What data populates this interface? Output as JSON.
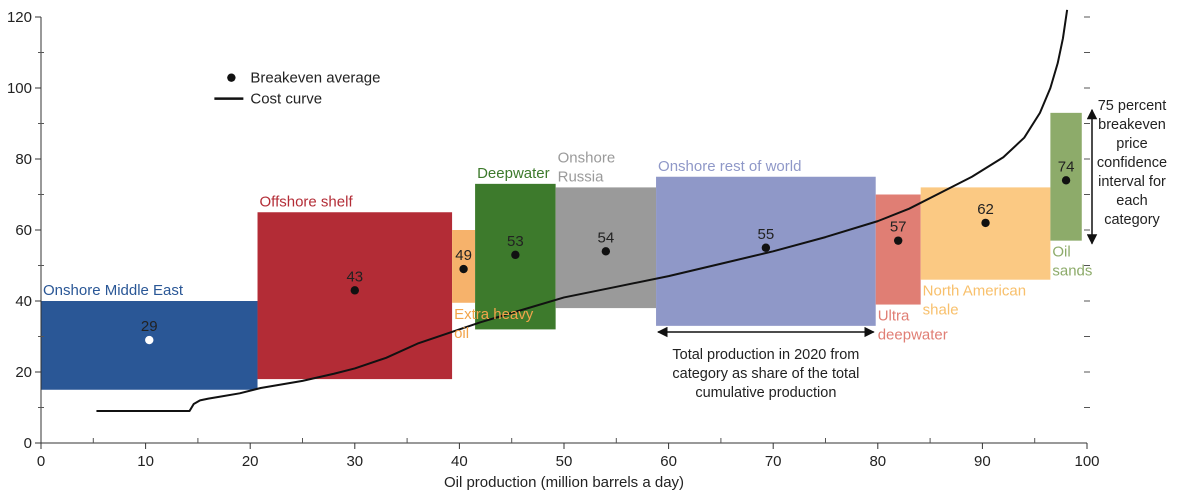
{
  "chart_data": {
    "type": "bar",
    "xlabel": "Oil production (million barrels a day)",
    "ylabel": "",
    "xlim": [
      0,
      100
    ],
    "ylim": [
      0,
      120
    ],
    "x_ticks": [
      0,
      10,
      20,
      30,
      40,
      50,
      60,
      70,
      80,
      90,
      100
    ],
    "y_ticks": [
      0,
      20,
      40,
      60,
      80,
      100,
      120
    ],
    "grid": false,
    "legend": {
      "placement": "top-left",
      "items": [
        {
          "name": "Breakeven average",
          "marker": "dot"
        },
        {
          "name": "Cost curve",
          "marker": "line"
        }
      ]
    },
    "categories": [
      {
        "label": [
          "Onshore Middle East"
        ],
        "x0": 0,
        "x1": 20.7,
        "low": 15,
        "high": 40,
        "avg": 29,
        "color": "#2a5796",
        "label_color": "#2a5796",
        "dot_color": "#ffffff"
      },
      {
        "label": [
          "Offshore shelf"
        ],
        "x0": 20.7,
        "x1": 39.3,
        "low": 18,
        "high": 65,
        "avg": 43,
        "color": "#b32c36",
        "label_color": "#b32c36",
        "dot_color": "#111111"
      },
      {
        "label": [
          "Extra heavy",
          "oil"
        ],
        "x0": 39.3,
        "x1": 41.5,
        "low": 39.5,
        "high": 60,
        "avg": 49,
        "color": "#f6b26b",
        "label_color": "#f2a44b",
        "dot_color": "#111111"
      },
      {
        "label": [
          "Deepwater"
        ],
        "x0": 41.5,
        "x1": 49.2,
        "low": 32,
        "high": 73,
        "avg": 53,
        "color": "#3d7a2c",
        "label_color": "#3d7a2c",
        "dot_color": "#111111"
      },
      {
        "label": [
          "Onshore",
          "Russia"
        ],
        "x0": 49.2,
        "x1": 58.8,
        "low": 38,
        "high": 72,
        "avg": 54,
        "color": "#9a9a9a",
        "label_color": "#9a9a9a",
        "dot_color": "#111111"
      },
      {
        "label": [
          "Onshore rest of world"
        ],
        "x0": 58.8,
        "x1": 79.8,
        "low": 33,
        "high": 75,
        "avg": 55,
        "color": "#8f98c8",
        "label_color": "#8f98c8",
        "dot_color": "#111111"
      },
      {
        "label": [
          "Ultra",
          "deepwater"
        ],
        "x0": 79.8,
        "x1": 84.1,
        "low": 39,
        "high": 70,
        "avg": 57,
        "color": "#e07e74",
        "label_color": "#e07e74",
        "dot_color": "#111111"
      },
      {
        "label": [
          "North American",
          "shale"
        ],
        "x0": 84.1,
        "x1": 96.5,
        "low": 46,
        "high": 72,
        "avg": 62,
        "color": "#fbc983",
        "label_color": "#f8c06c",
        "dot_color": "#111111"
      },
      {
        "label": [
          "Oil",
          "sands"
        ],
        "x0": 96.5,
        "x1": 99.5,
        "low": 57,
        "high": 93,
        "avg": 74,
        "color": "#8dab6a",
        "label_color": "#8dab6a",
        "dot_color": "#111111"
      }
    ],
    "cost_curve": [
      [
        5.3,
        9
      ],
      [
        14.2,
        9
      ],
      [
        14.6,
        11
      ],
      [
        15.2,
        12
      ],
      [
        16,
        12.5
      ],
      [
        17,
        13
      ],
      [
        19,
        14
      ],
      [
        21,
        15.5
      ],
      [
        25,
        17.5
      ],
      [
        28,
        19.5
      ],
      [
        30,
        21
      ],
      [
        33,
        24
      ],
      [
        36,
        28
      ],
      [
        39,
        31
      ],
      [
        42,
        34
      ],
      [
        46,
        37.5
      ],
      [
        50,
        41
      ],
      [
        55,
        44
      ],
      [
        60,
        47
      ],
      [
        65,
        50.5
      ],
      [
        70,
        54
      ],
      [
        75,
        58
      ],
      [
        80,
        62.5
      ],
      [
        83,
        66
      ],
      [
        86,
        70.5
      ],
      [
        89,
        75
      ],
      [
        92,
        80.5
      ],
      [
        94,
        86
      ],
      [
        95.5,
        93
      ],
      [
        96.5,
        100
      ],
      [
        97.2,
        107
      ],
      [
        97.7,
        114
      ],
      [
        98.1,
        122
      ]
    ],
    "annotations": {
      "confidence_note": [
        "75 percent",
        "breakeven",
        "price",
        "confidence",
        "interval for",
        "each",
        "category"
      ],
      "confidence_range": [
        57,
        93
      ],
      "production_note": [
        "Total production in 2020 from",
        "category as share of the total",
        "cumulative production"
      ],
      "production_range": [
        58.8,
        79.8
      ]
    }
  }
}
